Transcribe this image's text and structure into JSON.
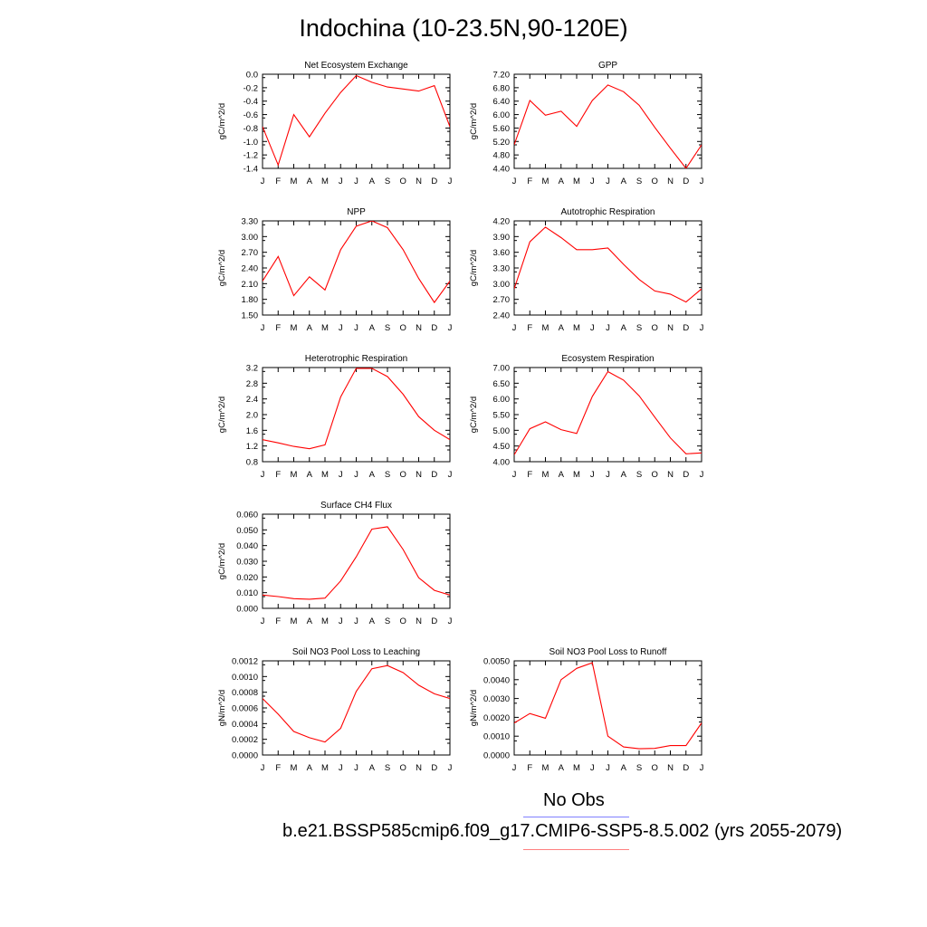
{
  "title": "Indochina (10-23.5N,90-120E)",
  "legend": {
    "obs_label": "No Obs",
    "obs_color": "#8080ff",
    "run_label": "b.e21.BSSP585cmip6.f09_g17.CMIP6-SSP5-8.5.002 (yrs 2055-2079)",
    "run_color": "#ff0000"
  },
  "months": [
    "J",
    "F",
    "M",
    "A",
    "M",
    "J",
    "J",
    "A",
    "S",
    "O",
    "N",
    "D",
    "J"
  ],
  "chart_data": [
    {
      "type": "line",
      "title": "Net Ecosystem Exchange",
      "ylabel": "gC/m^2/d",
      "ylim": [
        -1.4,
        0.0
      ],
      "yticks": [
        "0.0",
        "-0.2",
        "-0.4",
        "-0.6",
        "-0.8",
        "-1.0",
        "-1.2",
        "-1.4"
      ],
      "values": [
        -0.78,
        -1.35,
        -0.6,
        -0.93,
        -0.58,
        -0.27,
        -0.02,
        -0.12,
        -0.19,
        -0.22,
        -0.25,
        -0.17,
        -0.78
      ]
    },
    {
      "type": "line",
      "title": "GPP",
      "ylabel": "gC/m^2/d",
      "ylim": [
        4.4,
        7.2
      ],
      "yticks": [
        "7.20",
        "6.80",
        "6.40",
        "6.00",
        "5.60",
        "5.20",
        "4.80",
        "4.40"
      ],
      "values": [
        5.1,
        6.42,
        5.98,
        6.1,
        5.65,
        6.42,
        6.88,
        6.68,
        6.28,
        5.62,
        5.0,
        4.4,
        5.1
      ]
    },
    {
      "type": "line",
      "title": "NPP",
      "ylabel": "gC/m^2/d",
      "ylim": [
        1.5,
        3.3
      ],
      "yticks": [
        "3.30",
        "3.00",
        "2.70",
        "2.40",
        "2.10",
        "1.80",
        "1.50"
      ],
      "values": [
        2.15,
        2.62,
        1.87,
        2.23,
        1.98,
        2.75,
        3.2,
        3.3,
        3.17,
        2.75,
        2.2,
        1.74,
        2.15
      ]
    },
    {
      "type": "line",
      "title": "Autotrophic Respiration",
      "ylabel": "gC/m^2/d",
      "ylim": [
        2.4,
        4.2
      ],
      "yticks": [
        "4.20",
        "3.90",
        "3.60",
        "3.30",
        "3.00",
        "2.70",
        "2.40"
      ],
      "values": [
        2.9,
        3.8,
        4.08,
        3.88,
        3.65,
        3.65,
        3.68,
        3.37,
        3.08,
        2.86,
        2.8,
        2.65,
        2.9
      ]
    },
    {
      "type": "line",
      "title": "Heterotrophic Respiration",
      "ylabel": "gC/m^2/d",
      "ylim": [
        0.8,
        3.2
      ],
      "yticks": [
        "3.2",
        "2.8",
        "2.4",
        "2.0",
        "1.6",
        "1.2",
        "0.8"
      ],
      "values": [
        1.36,
        1.28,
        1.19,
        1.13,
        1.23,
        2.45,
        3.18,
        3.18,
        2.97,
        2.52,
        1.95,
        1.6,
        1.36
      ]
    },
    {
      "type": "line",
      "title": "Ecosystem Respiration",
      "ylabel": "gC/m^2/d",
      "ylim": [
        4.0,
        7.0
      ],
      "yticks": [
        "7.00",
        "6.50",
        "6.00",
        "5.50",
        "5.00",
        "4.50",
        "4.00"
      ],
      "values": [
        4.22,
        5.05,
        5.27,
        5.02,
        4.9,
        6.08,
        6.87,
        6.6,
        6.1,
        5.42,
        4.76,
        4.25,
        4.28
      ]
    },
    {
      "type": "line",
      "title": "Surface CH4 Flux",
      "ylabel": "gC/m^2/d",
      "ylim": [
        0.0,
        0.06
      ],
      "yticks": [
        "0.060",
        "0.050",
        "0.040",
        "0.030",
        "0.020",
        "0.010",
        "0.000"
      ],
      "values": [
        0.0085,
        0.0075,
        0.0062,
        0.0058,
        0.0065,
        0.0175,
        0.0328,
        0.0505,
        0.052,
        0.0375,
        0.0195,
        0.0115,
        0.0085
      ]
    },
    {
      "type": "line",
      "title": "Soil NO3 Pool Loss to Leaching",
      "ylabel": "gN/m^2/d",
      "ylim": [
        0.0,
        0.0012
      ],
      "yticks": [
        "0.0012",
        "0.0010",
        "0.0008",
        "0.0006",
        "0.0004",
        "0.0002",
        "0.0000"
      ],
      "values": [
        0.00072,
        0.00052,
        0.0003,
        0.00022,
        0.000165,
        0.00034,
        0.00081,
        0.0011,
        0.00114,
        0.00105,
        0.00089,
        0.00078,
        0.00072
      ]
    },
    {
      "type": "line",
      "title": "Soil NO3 Pool Loss to Runoff",
      "ylabel": "gN/m^2/d",
      "ylim": [
        0.0,
        0.005
      ],
      "yticks": [
        "0.0050",
        "0.0040",
        "0.0030",
        "0.0020",
        "0.0010",
        "0.0000"
      ],
      "values": [
        0.0017,
        0.0022,
        0.00195,
        0.004,
        0.0046,
        0.0049,
        0.001,
        0.00043,
        0.00033,
        0.00035,
        0.0005,
        0.0005,
        0.0017
      ]
    }
  ]
}
